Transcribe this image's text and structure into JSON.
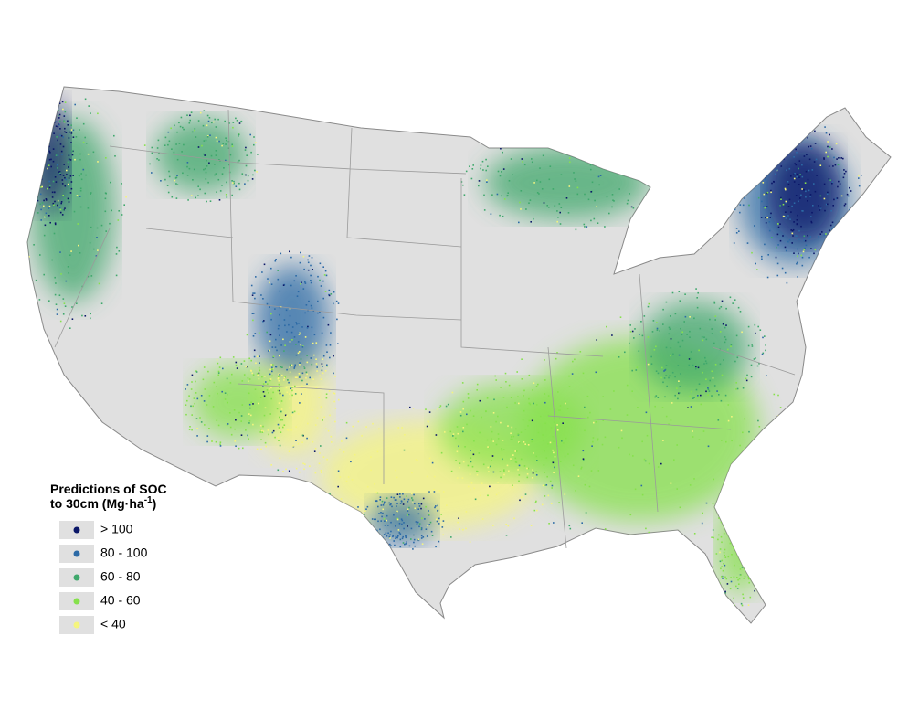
{
  "legend": {
    "title_line1": "Predictions of SOC",
    "title_line2": "to 30cm (Mg·ha",
    "title_sup": "-1",
    "title_end": ")",
    "items": [
      {
        "label": "> 100",
        "color": "#0b1768"
      },
      {
        "label": "80 - 100",
        "color": "#2c6aa6"
      },
      {
        "label": "60 - 80",
        "color": "#3fa86c"
      },
      {
        "label": "40 - 60",
        "color": "#86e14c"
      },
      {
        "label": "< 40",
        "color": "#f5f57e"
      }
    ]
  }
}
